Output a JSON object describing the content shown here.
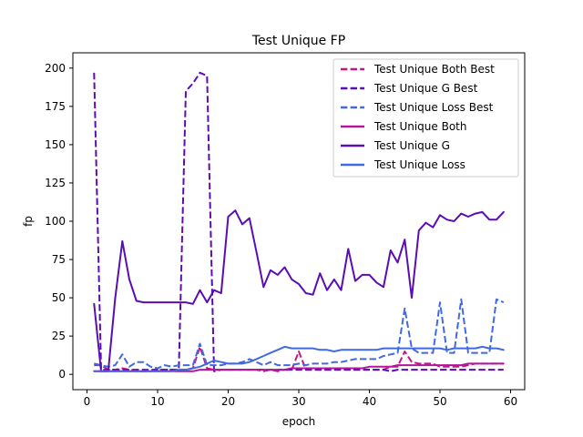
{
  "chart_data": {
    "type": "line",
    "title": "Test Unique FP",
    "xlabel": "epoch",
    "ylabel": "fp",
    "xlim": [
      -2,
      62
    ],
    "ylim": [
      -10,
      210
    ],
    "xticks": [
      0,
      10,
      20,
      30,
      40,
      50,
      60
    ],
    "yticks": [
      0,
      25,
      50,
      75,
      100,
      125,
      150,
      175,
      200
    ],
    "grid": false,
    "legend_position": "top-right",
    "x": [
      1,
      2,
      3,
      4,
      5,
      6,
      7,
      8,
      9,
      10,
      11,
      12,
      13,
      14,
      15,
      16,
      17,
      18,
      19,
      20,
      21,
      22,
      23,
      24,
      25,
      26,
      27,
      28,
      29,
      30,
      31,
      32,
      33,
      34,
      35,
      36,
      37,
      38,
      39,
      40,
      41,
      42,
      43,
      44,
      45,
      46,
      47,
      48,
      49,
      50,
      51,
      52,
      53,
      54,
      55,
      56,
      57,
      58,
      59
    ],
    "series": [
      {
        "name": "Test Unique Both Best",
        "color": "#c71585",
        "dashed": true,
        "values": [
          6,
          6,
          3,
          3,
          4,
          3,
          2,
          2,
          2,
          3,
          3,
          3,
          3,
          3,
          4,
          18,
          4,
          3,
          3,
          3,
          3,
          3,
          3,
          3,
          2,
          3,
          2,
          3,
          3,
          15,
          3,
          3,
          3,
          3,
          3,
          3,
          3,
          3,
          3,
          3,
          3,
          3,
          5,
          5,
          15,
          8,
          7,
          7,
          7,
          5,
          5,
          5,
          5,
          6,
          7,
          7,
          7,
          7,
          7
        ]
      },
      {
        "name": "Test Unique G Best",
        "color": "#5b0db5",
        "dashed": true,
        "values": [
          197,
          3,
          3,
          3,
          3,
          3,
          3,
          3,
          3,
          3,
          3,
          3,
          3,
          185,
          190,
          197,
          195,
          2,
          3,
          3,
          3,
          3,
          3,
          3,
          3,
          3,
          3,
          3,
          3,
          3,
          3,
          3,
          3,
          3,
          3,
          3,
          3,
          3,
          3,
          3,
          3,
          3,
          2,
          3,
          3,
          3,
          3,
          3,
          3,
          3,
          3,
          3,
          3,
          3,
          3,
          3,
          3,
          3,
          3
        ]
      },
      {
        "name": "Test Unique Loss Best",
        "color": "#4169e1",
        "dashed": true,
        "values": [
          7,
          6,
          5,
          6,
          13,
          5,
          8,
          8,
          5,
          4,
          6,
          5,
          6,
          6,
          6,
          20,
          6,
          6,
          6,
          7,
          7,
          8,
          10,
          8,
          6,
          8,
          6,
          6,
          6,
          7,
          6,
          7,
          7,
          7,
          8,
          8,
          9,
          10,
          10,
          10,
          10,
          12,
          13,
          14,
          43,
          17,
          14,
          14,
          14,
          47,
          14,
          14,
          49,
          14,
          14,
          14,
          14,
          49,
          47
        ]
      },
      {
        "name": "Test Unique Both",
        "color": "#b0179a",
        "dashed": false,
        "values": [
          2,
          2,
          2,
          2,
          2,
          2,
          2,
          2,
          2,
          2,
          2,
          2,
          2,
          2,
          2,
          3,
          3,
          3,
          3,
          3,
          3,
          3,
          3,
          3,
          3,
          3,
          3,
          3,
          4,
          4,
          4,
          4,
          4,
          4,
          4,
          4,
          4,
          4,
          4,
          5,
          5,
          5,
          5,
          6,
          6,
          6,
          6,
          6,
          6,
          6,
          6,
          6,
          6,
          7,
          7,
          7,
          7,
          7,
          7
        ]
      },
      {
        "name": "Test Unique G",
        "color": "#5b0db5",
        "dashed": false,
        "values": [
          46,
          2,
          2,
          50,
          87,
          62,
          48,
          47,
          47,
          47,
          47,
          47,
          47,
          47,
          46,
          55,
          47,
          55,
          53,
          103,
          107,
          98,
          102,
          80,
          57,
          68,
          65,
          70,
          62,
          59,
          53,
          52,
          66,
          55,
          62,
          55,
          82,
          61,
          65,
          65,
          60,
          57,
          81,
          73,
          88,
          50,
          94,
          99,
          96,
          104,
          101,
          100,
          105,
          103,
          105,
          106,
          101,
          101,
          106
        ]
      },
      {
        "name": "Test Unique Loss",
        "color": "#4169e1",
        "dashed": false,
        "values": [
          2,
          2,
          2,
          2,
          2,
          2,
          2,
          2,
          2,
          2,
          2,
          2,
          3,
          3,
          4,
          5,
          7,
          9,
          8,
          7,
          7,
          7,
          8,
          10,
          12,
          14,
          16,
          18,
          17,
          17,
          17,
          17,
          16,
          16,
          15,
          16,
          16,
          16,
          16,
          16,
          16,
          17,
          17,
          17,
          17,
          17,
          17,
          17,
          17,
          17,
          16,
          17,
          17,
          17,
          17,
          18,
          17,
          17,
          16
        ]
      }
    ]
  }
}
